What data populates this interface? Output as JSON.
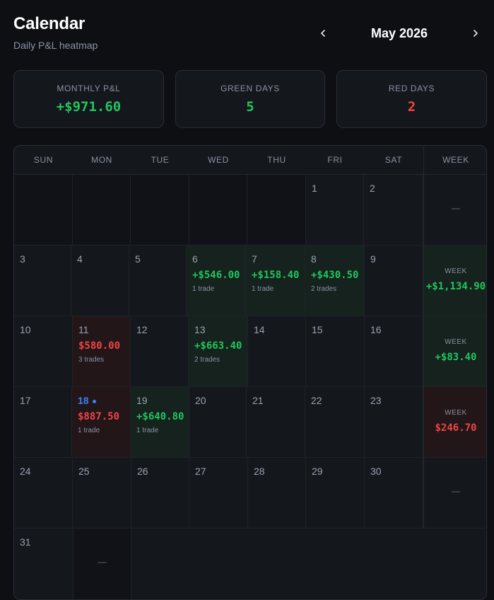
{
  "header": {
    "title": "Calendar",
    "subtitle": "Daily P&L heatmap"
  },
  "nav": {
    "month": "May 2026",
    "prev_icon": "chevron-left-icon",
    "next_icon": "chevron-right-icon"
  },
  "stats": {
    "monthly_label": "MONTHLY P&L",
    "monthly_value": "+$971.60",
    "green_label": "GREEN DAYS",
    "green_value": "5",
    "red_label": "RED DAYS",
    "red_value": "2"
  },
  "weekdays": [
    "SUN",
    "MON",
    "TUE",
    "WED",
    "THU",
    "FRI",
    "SAT",
    "WEEK"
  ],
  "colors": {
    "positive": "#22c55e",
    "negative": "#ef4444",
    "today": "#3b82f6"
  },
  "days": {
    "d1": "1",
    "d2": "2",
    "d3": "3",
    "d4": "4",
    "d5": "5",
    "d6": "6",
    "d6_pnl": "+$546.00",
    "d6_trades": "1 trade",
    "d7": "7",
    "d7_pnl": "+$158.40",
    "d7_trades": "1 trade",
    "d8": "8",
    "d8_pnl": "+$430.50",
    "d8_trades": "2 trades",
    "d9": "9",
    "d10": "10",
    "d11": "11",
    "d11_pnl": "$580.00",
    "d11_trades": "3 trades",
    "d12": "12",
    "d13": "13",
    "d13_pnl": "+$663.40",
    "d13_trades": "2 trades",
    "d14": "14",
    "d15": "15",
    "d16": "16",
    "d17": "17",
    "d18": "18",
    "d18_pnl": "$887.50",
    "d18_trades": "1 trade",
    "d19": "19",
    "d19_pnl": "+$640.80",
    "d19_trades": "1 trade",
    "d20": "20",
    "d21": "21",
    "d22": "22",
    "d23": "23",
    "d24": "24",
    "d25": "25",
    "d26": "26",
    "d27": "27",
    "d28": "28",
    "d29": "29",
    "d30": "30",
    "d31": "31",
    "empty_dash": "—"
  },
  "weeks": {
    "w1_dash": "—",
    "w2_label": "WEEK",
    "w2_value": "+$1,134.90",
    "w3_label": "WEEK",
    "w3_value": "+$83.40",
    "w4_label": "WEEK",
    "w4_value": "$246.70",
    "w5_dash": "—"
  }
}
